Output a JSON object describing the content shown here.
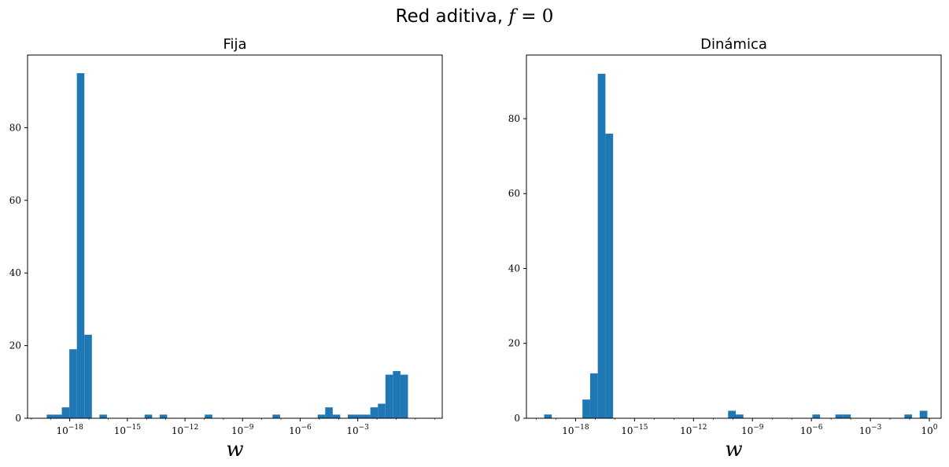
{
  "figure": {
    "suptitle_text": "Red aditiva, ",
    "suptitle_math_var": "f",
    "suptitle_math_rest": " = 0"
  },
  "chart_data": [
    {
      "type": "bar",
      "title": "Fija",
      "xlabel": "w",
      "ylabel": "",
      "xscale": "log",
      "xlim_exp": [
        -20.2,
        1.4
      ],
      "ylim": [
        0,
        100
      ],
      "xtick_exps": [
        -18,
        -15,
        -12,
        -9,
        -6,
        -3
      ],
      "xtick_labels": [
        "10^-18",
        "10^-15",
        "10^-12",
        "10^-9",
        "10^-6",
        "10^-3"
      ],
      "yticks": [
        0,
        20,
        40,
        60,
        80
      ],
      "color": "#1f77b4",
      "bins_exp_range": [
        -19.2,
        0.4
      ],
      "bin_count": 50,
      "counts": [
        1,
        1,
        3,
        19,
        95,
        23,
        0,
        1,
        0,
        0,
        0,
        0,
        0,
        1,
        0,
        1,
        0,
        0,
        0,
        0,
        0,
        1,
        0,
        0,
        0,
        0,
        0,
        0,
        0,
        0,
        1,
        0,
        0,
        0,
        0,
        0,
        1,
        3,
        1,
        0,
        1,
        1,
        1,
        3,
        4,
        12,
        13,
        12,
        0,
        0
      ]
    },
    {
      "type": "bar",
      "title": "Dinámica",
      "xlabel": "w",
      "ylabel": "",
      "xscale": "log",
      "xlim_exp": [
        -20.5,
        0.6
      ],
      "ylim": [
        0,
        97
      ],
      "xtick_exps": [
        -18,
        -15,
        -12,
        -9,
        -6,
        -3,
        0
      ],
      "xtick_labels": [
        "10^-18",
        "10^-15",
        "10^-12",
        "10^-9",
        "10^-6",
        "10^-3",
        "10^0"
      ],
      "yticks": [
        0,
        20,
        40,
        60,
        80
      ],
      "color": "#1f77b4",
      "bins_exp_range": [
        -19.6,
        -0.1
      ],
      "bin_count": 50,
      "counts": [
        1,
        0,
        0,
        0,
        0,
        5,
        12,
        92,
        76,
        0,
        0,
        0,
        0,
        0,
        0,
        0,
        0,
        0,
        0,
        0,
        0,
        0,
        0,
        0,
        2,
        1,
        0,
        0,
        0,
        0,
        0,
        0,
        0,
        0,
        0,
        1,
        0,
        0,
        1,
        1,
        0,
        0,
        0,
        0,
        0,
        0,
        0,
        1,
        0,
        2
      ]
    }
  ]
}
